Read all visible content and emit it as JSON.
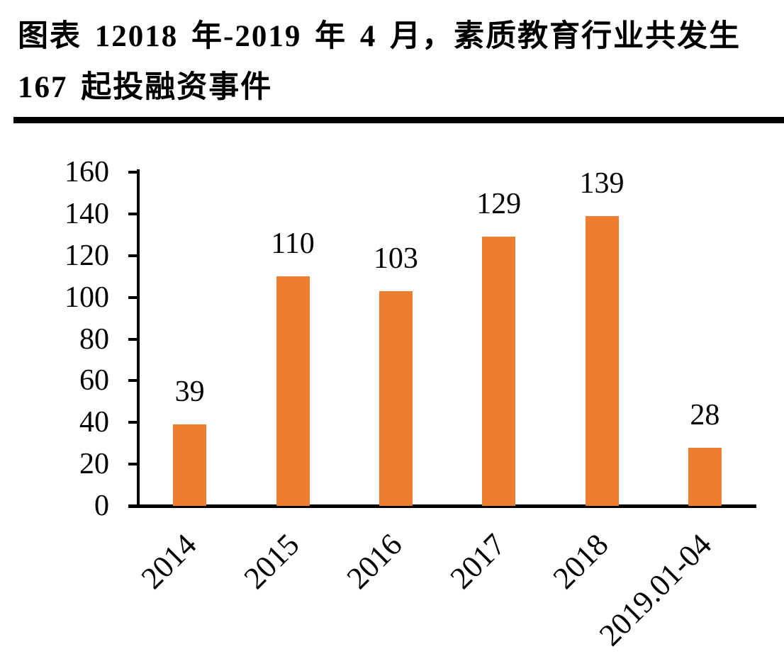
{
  "figure": {
    "title_lines": [
      "图表 12018 年-2019 年 4 月，素质教育行业共发生",
      "167 起投融资事件"
    ]
  },
  "chart_data": {
    "type": "bar",
    "title": "图表 1 2018 年-2019 年 4 月，素质教育行业共发生 167 起投融资事件",
    "categories": [
      "2014",
      "2015",
      "2016",
      "2017",
      "2018",
      "2019.01-04"
    ],
    "values": [
      39,
      110,
      103,
      129,
      139,
      28
    ],
    "data_labels": [
      "39",
      "110",
      "103",
      "129",
      "139",
      "28"
    ],
    "xlabel": "",
    "ylabel": "",
    "ylim": [
      0,
      160
    ],
    "yticks": [
      0,
      20,
      40,
      60,
      80,
      100,
      120,
      140,
      160
    ],
    "grid": false,
    "legend": false,
    "bar_color": "#ED7D31",
    "axis_color": "#000000",
    "text_color": "#000000"
  }
}
